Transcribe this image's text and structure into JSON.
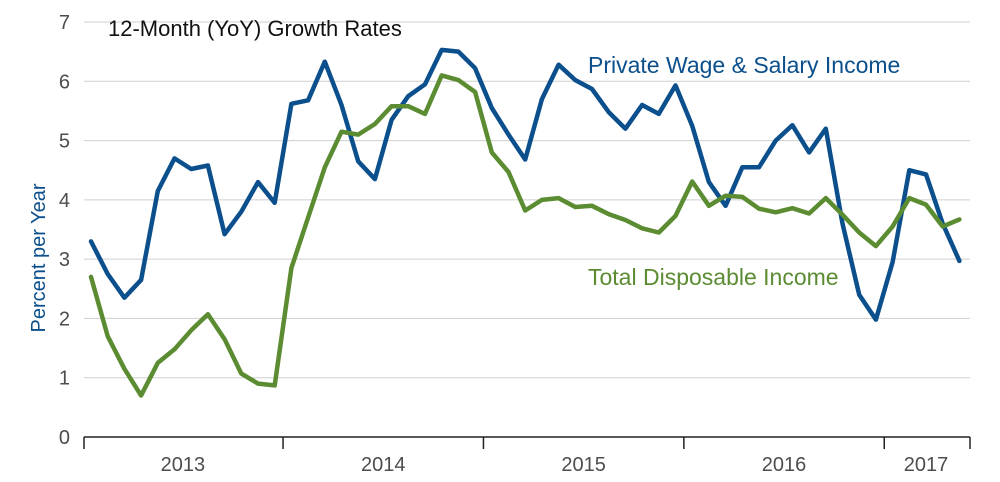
{
  "chart_data": {
    "type": "line",
    "title": "12-Month (YoY) Growth Rates",
    "ylabel": "Percent per Year",
    "xlabel": "",
    "ylim": [
      0,
      7
    ],
    "yticks": [
      "0",
      "1",
      "2",
      "3",
      "4",
      "5",
      "6",
      "7"
    ],
    "grid": true,
    "legend": "inline labels",
    "x_start": "2013-01",
    "years": [
      "2013",
      "2014",
      "2015",
      "2016",
      "2017"
    ],
    "series": [
      {
        "name": "Private Wage & Salary Income",
        "color": "#0b4f8c",
        "values": [
          3.3,
          2.75,
          2.35,
          2.65,
          4.15,
          4.7,
          4.52,
          4.58,
          3.42,
          3.8,
          4.3,
          3.95,
          5.62,
          5.68,
          6.33,
          5.6,
          4.65,
          4.35,
          5.35,
          5.75,
          5.95,
          6.53,
          6.5,
          6.22,
          5.55,
          5.1,
          4.68,
          5.7,
          6.28,
          6.02,
          5.87,
          5.48,
          5.2,
          5.6,
          5.45,
          5.93,
          5.25,
          4.3,
          3.9,
          4.55,
          4.55,
          5.0,
          5.26,
          4.8,
          5.2,
          3.6,
          2.4,
          1.98,
          2.95,
          4.5,
          4.43,
          3.6,
          2.97
        ]
      },
      {
        "name": "Total Disposable Income",
        "color": "#5b8c32",
        "values": [
          2.7,
          1.7,
          1.15,
          0.7,
          1.25,
          1.48,
          1.8,
          2.07,
          1.65,
          1.07,
          0.9,
          0.87,
          2.85,
          3.7,
          4.55,
          5.15,
          5.1,
          5.28,
          5.58,
          5.58,
          5.45,
          6.1,
          6.02,
          5.82,
          4.8,
          4.47,
          3.82,
          4.0,
          4.03,
          3.88,
          3.9,
          3.76,
          3.66,
          3.52,
          3.45,
          3.73,
          4.31,
          3.9,
          4.07,
          4.05,
          3.85,
          3.79,
          3.86,
          3.77,
          4.03,
          3.75,
          3.45,
          3.22,
          3.55,
          4.03,
          3.92,
          3.55,
          3.67
        ]
      }
    ]
  }
}
